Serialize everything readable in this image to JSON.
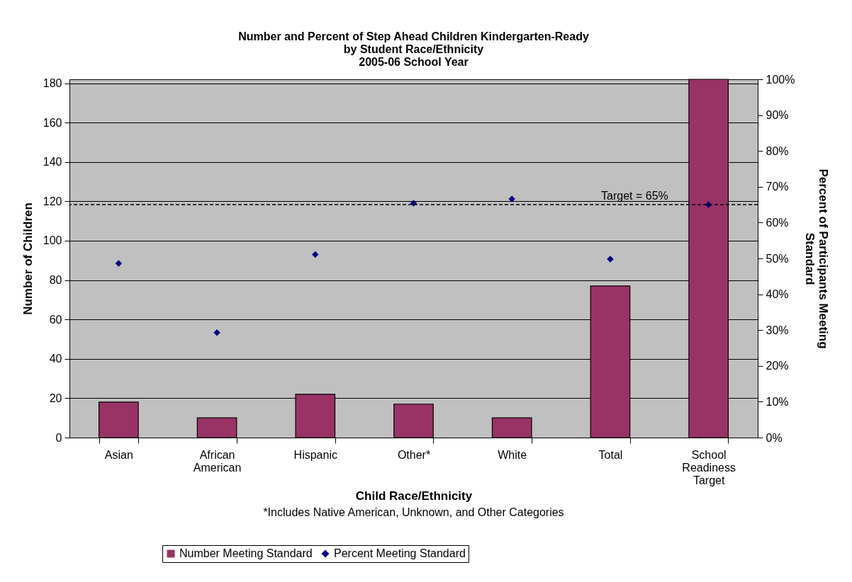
{
  "chart_data": {
    "type": "bar",
    "title": "Number and Percent of Step Ahead Children Kindergarten-Ready\nby Student Race/Ethnicity\n2005-06 School Year",
    "xlabel": "Child Race/Ethnicity",
    "ylabel": "Number of Children",
    "y2label": "Percent of Participants Meeting\nStandard",
    "annotations": [
      "*Includes Native American, Unknown, and Other Categories"
    ],
    "categories": [
      "Asian",
      "African American",
      "Hispanic",
      "Other*",
      "White",
      "Total",
      "School Readiness Target"
    ],
    "series": [
      {
        "name": "Number Meeting Standard",
        "color": "#993366",
        "values": [
          18,
          10,
          22,
          17,
          10,
          77,
          182
        ]
      },
      {
        "name": "Percent Meeting Standard",
        "type": "scatter",
        "axis": "y2",
        "color": "#000080",
        "marker": "diamond",
        "values": [
          48.6,
          29.3,
          51.1,
          65.4,
          66.6,
          49.8,
          65
        ]
      }
    ],
    "ylim": [
      0,
      182
    ],
    "yticks": [
      0,
      20,
      40,
      60,
      80,
      100,
      120,
      140,
      160,
      180
    ],
    "y2lim": [
      0,
      100
    ],
    "y2ticks": [
      {
        "value": 0,
        "label": "0%"
      },
      {
        "value": 10,
        "label": "10%"
      },
      {
        "value": 20,
        "label": "20%"
      },
      {
        "value": 30,
        "label": "30%"
      },
      {
        "value": 40,
        "label": "40%"
      },
      {
        "value": 50,
        "label": "50%"
      },
      {
        "value": 60,
        "label": "60%"
      },
      {
        "value": 70,
        "label": "70%"
      },
      {
        "value": 80,
        "label": "80%"
      },
      {
        "value": 90,
        "label": "90%"
      },
      {
        "value": 100,
        "label": "100%"
      }
    ],
    "ref_lines": [
      {
        "axis": "y2",
        "value": 65,
        "label": "Target = 65%",
        "line_style": "dashed",
        "color": "#000000"
      }
    ],
    "grid": "y",
    "legend": "bottom"
  }
}
